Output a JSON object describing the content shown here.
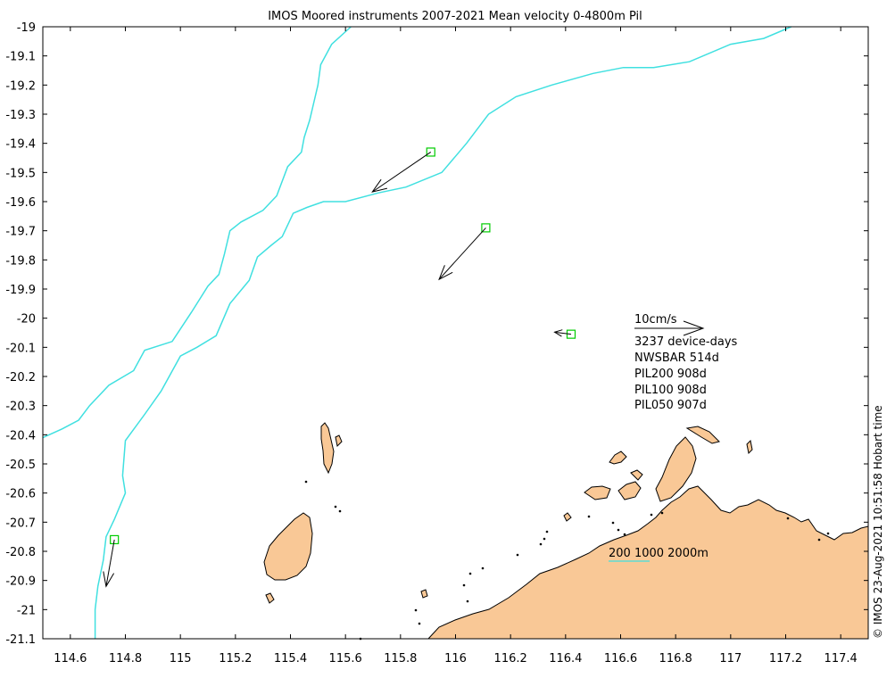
{
  "title": "IMOS Moored instruments 2007-2021 Mean velocity 0-4800m Pil",
  "credit": "© IMOS 23-Aug-2021 10:51:58 Hobart time",
  "colors": {
    "land": "#f9c896",
    "coast": "#000000",
    "isobath": "#40e0e0",
    "mooring_marker": "#00cc00",
    "arrow": "#000000"
  },
  "axes": {
    "x_ticks": [
      "114.6",
      "114.8",
      "115",
      "115.2",
      "115.4",
      "115.6",
      "115.8",
      "116",
      "116.2",
      "116.4",
      "116.6",
      "116.8",
      "117",
      "117.2",
      "117.4"
    ],
    "y_ticks": [
      "-19",
      "-19.1",
      "-19.2",
      "-19.3",
      "-19.4",
      "-19.5",
      "-19.6",
      "-19.7",
      "-19.8",
      "-19.9",
      "-20",
      "-20.1",
      "-20.2",
      "-20.3",
      "-20.4",
      "-20.5",
      "-20.6",
      "-20.7",
      "-20.8",
      "-20.9",
      "-21",
      "-21.1"
    ],
    "xlim": [
      114.5,
      117.5
    ],
    "ylim": [
      -21.1,
      -19
    ]
  },
  "legend": {
    "scale_label": "10cm/s",
    "device_days": "3237 device-days",
    "moorings": [
      "NWSBAR 514d",
      "PIL200 908d",
      "PIL100 908d",
      "PIL050 907d"
    ]
  },
  "isobath_label": "200 1000 2000m",
  "chart_data": {
    "type": "scatter",
    "x_unit": "degrees longitude",
    "y_unit": "degrees latitude",
    "moorings": [
      {
        "lon": 115.91,
        "lat": -19.43,
        "u_cms": -8.5,
        "v_cms": -5.8
      },
      {
        "lon": 116.11,
        "lat": -19.69,
        "u_cms": -6.8,
        "v_cms": -7.5
      },
      {
        "lon": 116.42,
        "lat": -20.055,
        "u_cms": -2.4,
        "v_cms": 0.3
      },
      {
        "lon": 114.76,
        "lat": -20.76,
        "u_cms": -1.2,
        "v_cms": -6.8
      }
    ],
    "isobaths": [
      {
        "depth_label": "200",
        "points": [
          [
            115.62,
            -19
          ],
          [
            115.55,
            -19.06
          ],
          [
            115.51,
            -19.13
          ],
          [
            115.5,
            -19.2
          ],
          [
            115.47,
            -19.32
          ],
          [
            115.45,
            -19.38
          ],
          [
            115.44,
            -19.43
          ],
          [
            115.39,
            -19.48
          ],
          [
            115.35,
            -19.58
          ],
          [
            115.3,
            -19.63
          ],
          [
            115.22,
            -19.67
          ],
          [
            115.18,
            -19.7
          ],
          [
            115.16,
            -19.78
          ],
          [
            115.14,
            -19.85
          ],
          [
            115.1,
            -19.89
          ],
          [
            115.04,
            -19.98
          ],
          [
            114.97,
            -20.08
          ],
          [
            114.87,
            -20.11
          ],
          [
            114.83,
            -20.18
          ],
          [
            114.74,
            -20.23
          ],
          [
            114.67,
            -20.3
          ],
          [
            114.63,
            -20.35
          ],
          [
            114.57,
            -20.38
          ],
          [
            114.5,
            -20.41
          ]
        ]
      },
      {
        "depth_label": "1000",
        "points": [
          [
            117.22,
            -19
          ],
          [
            117.12,
            -19.04
          ],
          [
            117.0,
            -19.06
          ],
          [
            116.85,
            -19.12
          ],
          [
            116.72,
            -19.14
          ],
          [
            116.61,
            -19.14
          ],
          [
            116.5,
            -19.16
          ],
          [
            116.35,
            -19.2
          ],
          [
            116.22,
            -19.24
          ],
          [
            116.12,
            -19.3
          ],
          [
            116.04,
            -19.4
          ],
          [
            115.95,
            -19.5
          ],
          [
            115.82,
            -19.55
          ],
          [
            115.72,
            -19.57
          ],
          [
            115.6,
            -19.6
          ],
          [
            115.52,
            -19.6
          ],
          [
            115.46,
            -19.62
          ],
          [
            115.41,
            -19.64
          ],
          [
            115.37,
            -19.72
          ],
          [
            115.33,
            -19.75
          ],
          [
            115.28,
            -19.79
          ],
          [
            115.25,
            -19.87
          ],
          [
            115.18,
            -19.95
          ],
          [
            115.13,
            -20.06
          ],
          [
            115.06,
            -20.1
          ],
          [
            115.0,
            -20.13
          ],
          [
            114.93,
            -20.25
          ],
          [
            114.87,
            -20.33
          ],
          [
            114.8,
            -20.42
          ],
          [
            114.79,
            -20.54
          ],
          [
            114.8,
            -20.6
          ],
          [
            114.76,
            -20.69
          ],
          [
            114.73,
            -20.75
          ],
          [
            114.72,
            -20.83
          ],
          [
            114.7,
            -20.92
          ],
          [
            114.69,
            -21.0
          ],
          [
            114.69,
            -21.1
          ]
        ]
      }
    ]
  }
}
